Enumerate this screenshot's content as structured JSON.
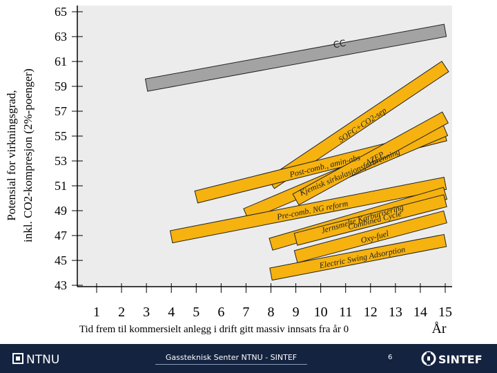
{
  "chart_data": {
    "type": "line",
    "ylabel": [
      "Potensial for virkningsgrad,",
      "inkl. CO2-kompresjon (2%-poenger)"
    ],
    "xlabel": "Tid frem til kommersielt anlegg i drift gitt massiv innsats fra år 0",
    "xunit": "År",
    "xlim": [
      1,
      15
    ],
    "ylim": [
      43,
      65
    ],
    "x_ticks": [
      1,
      2,
      3,
      4,
      5,
      6,
      7,
      8,
      9,
      10,
      11,
      12,
      13,
      14,
      15
    ],
    "y_ticks": [
      43,
      45,
      47,
      49,
      51,
      53,
      55,
      57,
      59,
      61,
      63,
      65
    ],
    "reference_band": {
      "label": "CC",
      "color": "#a3a3a3",
      "from": [
        3,
        59.1
      ],
      "to": [
        15,
        63.5
      ]
    },
    "series": [
      {
        "label": "SOFC+CO2-sep",
        "from": [
          8,
          51.2
        ],
        "to": [
          15,
          60.6
        ]
      },
      {
        "label": "Post-comb., amin-abs",
        "from": [
          5,
          50.1
        ],
        "to": [
          15,
          55.1
        ]
      },
      {
        "label": "Kjemisk sirkulasjonsforbrenning",
        "from": [
          7,
          48.7
        ],
        "to": [
          15,
          55.5
        ]
      },
      {
        "label": "AZEP",
        "from": [
          9,
          49.9
        ],
        "to": [
          15,
          56.5
        ]
      },
      {
        "label": "Pre-comb. NG reform",
        "from": [
          4,
          46.9
        ],
        "to": [
          15,
          51.2
        ]
      },
      {
        "label": "Jernsmelte Karburisering",
        "from": [
          8,
          46.3
        ],
        "to": [
          15,
          50.4
        ]
      },
      {
        "label": "Combined Cycle",
        "from": [
          9,
          46.7
        ],
        "to": [
          15,
          49.8
        ]
      },
      {
        "label": "Oxy-fuel",
        "from": [
          9,
          45.3
        ],
        "to": [
          15,
          48.5
        ]
      },
      {
        "label": "Electric Swing Adsorption",
        "from": [
          8,
          43.9
        ],
        "to": [
          15,
          46.6
        ]
      }
    ],
    "band_color": "#f6b20f",
    "grid": false
  },
  "footer": {
    "left_logo": "NTNU",
    "center": "Gassteknisk Senter NTNU - SINTEF",
    "page": "6",
    "right_logo": "SINTEF"
  }
}
